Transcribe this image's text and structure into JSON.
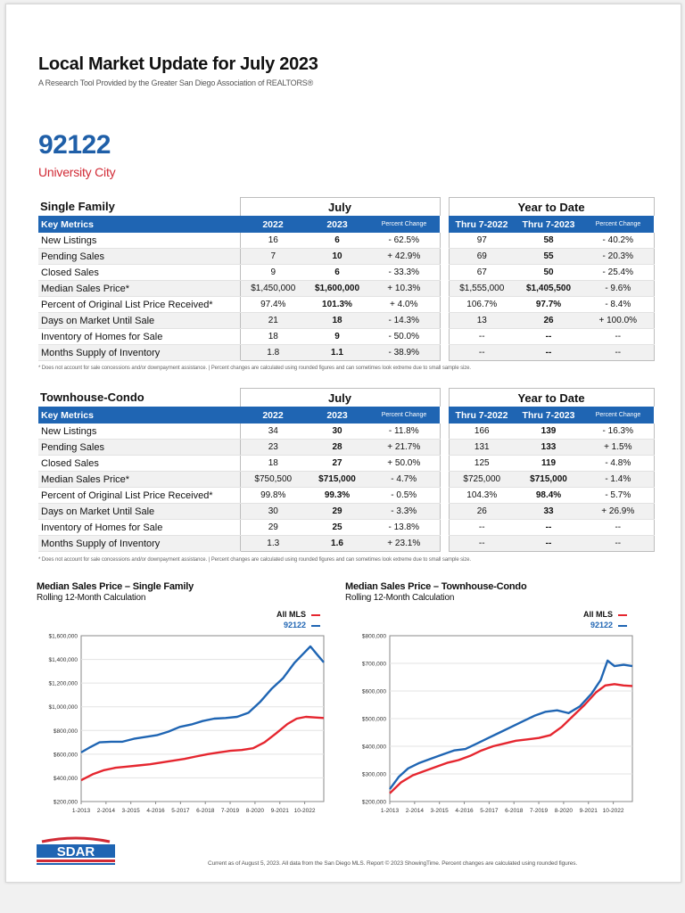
{
  "header": {
    "title": "Local Market Update for July 2023",
    "subtitle": "A Research Tool Provided by the Greater San Diego Association of REALTORS®",
    "zip": "92122",
    "area": "University City"
  },
  "columns": {
    "group_july": "July",
    "group_ytd": "Year to Date",
    "key_metrics": "Key Metrics",
    "y2022": "2022",
    "y2023": "2023",
    "pct": "Percent Change",
    "thru2022": "Thru 7-2022",
    "thru2023": "Thru 7-2023"
  },
  "single_family": {
    "title": "Single Family",
    "rows": [
      {
        "name": "New Listings",
        "v22": "16",
        "v23": "6",
        "pc": "- 62.5%",
        "t22": "97",
        "t23": "58",
        "tpc": "- 40.2%"
      },
      {
        "name": "Pending Sales",
        "v22": "7",
        "v23": "10",
        "pc": "+ 42.9%",
        "t22": "69",
        "t23": "55",
        "tpc": "- 20.3%"
      },
      {
        "name": "Closed Sales",
        "v22": "9",
        "v23": "6",
        "pc": "- 33.3%",
        "t22": "67",
        "t23": "50",
        "tpc": "- 25.4%"
      },
      {
        "name": "Median Sales Price*",
        "v22": "$1,450,000",
        "v23": "$1,600,000",
        "pc": "+ 10.3%",
        "t22": "$1,555,000",
        "t23": "$1,405,500",
        "tpc": "- 9.6%"
      },
      {
        "name": "Percent of Original List Price Received*",
        "v22": "97.4%",
        "v23": "101.3%",
        "pc": "+ 4.0%",
        "t22": "106.7%",
        "t23": "97.7%",
        "tpc": "- 8.4%"
      },
      {
        "name": "Days on Market Until Sale",
        "v22": "21",
        "v23": "18",
        "pc": "- 14.3%",
        "t22": "13",
        "t23": "26",
        "tpc": "+ 100.0%"
      },
      {
        "name": "Inventory of Homes for Sale",
        "v22": "18",
        "v23": "9",
        "pc": "- 50.0%",
        "t22": "--",
        "t23": "--",
        "tpc": "--"
      },
      {
        "name": "Months Supply of Inventory",
        "v22": "1.8",
        "v23": "1.1",
        "pc": "- 38.9%",
        "t22": "--",
        "t23": "--",
        "tpc": "--"
      }
    ],
    "footnote": "* Does not account for sale concessions and/or downpayment assistance.  |  Percent changes are calculated using rounded figures and can sometimes look extreme due to small sample size."
  },
  "townhouse": {
    "title": "Townhouse-Condo",
    "rows": [
      {
        "name": "New Listings",
        "v22": "34",
        "v23": "30",
        "pc": "- 11.8%",
        "t22": "166",
        "t23": "139",
        "tpc": "- 16.3%"
      },
      {
        "name": "Pending Sales",
        "v22": "23",
        "v23": "28",
        "pc": "+ 21.7%",
        "t22": "131",
        "t23": "133",
        "tpc": "+ 1.5%"
      },
      {
        "name": "Closed Sales",
        "v22": "18",
        "v23": "27",
        "pc": "+ 50.0%",
        "t22": "125",
        "t23": "119",
        "tpc": "- 4.8%"
      },
      {
        "name": "Median Sales Price*",
        "v22": "$750,500",
        "v23": "$715,000",
        "pc": "- 4.7%",
        "t22": "$725,000",
        "t23": "$715,000",
        "tpc": "- 1.4%"
      },
      {
        "name": "Percent of Original List Price Received*",
        "v22": "99.8%",
        "v23": "99.3%",
        "pc": "- 0.5%",
        "t22": "104.3%",
        "t23": "98.4%",
        "tpc": "- 5.7%"
      },
      {
        "name": "Days on Market Until Sale",
        "v22": "30",
        "v23": "29",
        "pc": "- 3.3%",
        "t22": "26",
        "t23": "33",
        "tpc": "+ 26.9%"
      },
      {
        "name": "Inventory of Homes for Sale",
        "v22": "29",
        "v23": "25",
        "pc": "- 13.8%",
        "t22": "--",
        "t23": "--",
        "tpc": "--"
      },
      {
        "name": "Months Supply of Inventory",
        "v22": "1.3",
        "v23": "1.6",
        "pc": "+ 23.1%",
        "t22": "--",
        "t23": "--",
        "tpc": "--"
      }
    ],
    "footnote": "* Does not account for sale concessions and/or downpayment assistance.  |  Percent changes are calculated using rounded figures and can sometimes look extreme due to small sample size."
  },
  "chart_data": [
    {
      "type": "line",
      "title": "Median Sales Price – Single Family",
      "subtitle": "Rolling 12-Month Calculation",
      "x_ticks": [
        "1-2013",
        "2-2014",
        "3-2015",
        "4-2016",
        "5-2017",
        "6-2018",
        "7-2019",
        "8-2020",
        "9-2021",
        "10-2022"
      ],
      "y_ticks": [
        "$200,000",
        "$400,000",
        "$600,000",
        "$800,000",
        "$1,000,000",
        "$1,200,000",
        "$1,400,000",
        "$1,600,000"
      ],
      "ylim": [
        200000,
        1600000
      ],
      "xlim": [
        2013.0,
        2023.583
      ],
      "legend_position": "top-right",
      "series": [
        {
          "name": "All MLS",
          "color": "#e5262f",
          "points": [
            [
              2013.0,
              380000
            ],
            [
              2013.5,
              430000
            ],
            [
              2014.0,
              465000
            ],
            [
              2014.5,
              485000
            ],
            [
              2015.0,
              495000
            ],
            [
              2015.5,
              505000
            ],
            [
              2016.0,
              515000
            ],
            [
              2016.5,
              530000
            ],
            [
              2017.0,
              545000
            ],
            [
              2017.5,
              560000
            ],
            [
              2018.0,
              580000
            ],
            [
              2018.5,
              600000
            ],
            [
              2019.0,
              615000
            ],
            [
              2019.5,
              628000
            ],
            [
              2020.0,
              635000
            ],
            [
              2020.5,
              650000
            ],
            [
              2021.0,
              700000
            ],
            [
              2021.5,
              775000
            ],
            [
              2022.0,
              855000
            ],
            [
              2022.4,
              900000
            ],
            [
              2022.8,
              915000
            ],
            [
              2023.2,
              910000
            ],
            [
              2023.583,
              905000
            ]
          ]
        },
        {
          "name": "92122",
          "color": "#1f65b3",
          "points": [
            [
              2013.0,
              615000
            ],
            [
              2013.4,
              660000
            ],
            [
              2013.8,
              700000
            ],
            [
              2014.3,
              705000
            ],
            [
              2014.8,
              705000
            ],
            [
              2015.3,
              730000
            ],
            [
              2015.8,
              745000
            ],
            [
              2016.3,
              760000
            ],
            [
              2016.8,
              790000
            ],
            [
              2017.3,
              830000
            ],
            [
              2017.8,
              850000
            ],
            [
              2018.3,
              880000
            ],
            [
              2018.8,
              900000
            ],
            [
              2019.3,
              905000
            ],
            [
              2019.8,
              915000
            ],
            [
              2020.3,
              950000
            ],
            [
              2020.8,
              1040000
            ],
            [
              2021.3,
              1150000
            ],
            [
              2021.8,
              1240000
            ],
            [
              2022.3,
              1370000
            ],
            [
              2022.7,
              1450000
            ],
            [
              2023.0,
              1510000
            ],
            [
              2023.3,
              1440000
            ],
            [
              2023.583,
              1375000
            ]
          ]
        }
      ]
    },
    {
      "type": "line",
      "title": "Median Sales Price – Townhouse-Condo",
      "subtitle": "Rolling 12-Month Calculation",
      "x_ticks": [
        "1-2013",
        "2-2014",
        "3-2015",
        "4-2016",
        "5-2017",
        "6-2018",
        "7-2019",
        "8-2020",
        "9-2021",
        "10-2022"
      ],
      "y_ticks": [
        "$200,000",
        "$300,000",
        "$400,000",
        "$500,000",
        "$600,000",
        "$700,000",
        "$800,000"
      ],
      "ylim": [
        200000,
        800000
      ],
      "xlim": [
        2013.0,
        2023.583
      ],
      "legend_position": "top-right",
      "series": [
        {
          "name": "All MLS",
          "color": "#e5262f",
          "points": [
            [
              2013.0,
              230000
            ],
            [
              2013.5,
              270000
            ],
            [
              2014.0,
              295000
            ],
            [
              2014.5,
              310000
            ],
            [
              2015.0,
              325000
            ],
            [
              2015.5,
              340000
            ],
            [
              2016.0,
              350000
            ],
            [
              2016.5,
              365000
            ],
            [
              2017.0,
              385000
            ],
            [
              2017.5,
              400000
            ],
            [
              2018.0,
              410000
            ],
            [
              2018.5,
              420000
            ],
            [
              2019.0,
              425000
            ],
            [
              2019.5,
              430000
            ],
            [
              2020.0,
              440000
            ],
            [
              2020.5,
              470000
            ],
            [
              2021.0,
              510000
            ],
            [
              2021.5,
              550000
            ],
            [
              2022.0,
              595000
            ],
            [
              2022.4,
              620000
            ],
            [
              2022.8,
              625000
            ],
            [
              2023.2,
              620000
            ],
            [
              2023.583,
              618000
            ]
          ]
        },
        {
          "name": "92122",
          "color": "#1f65b3",
          "points": [
            [
              2013.0,
              245000
            ],
            [
              2013.4,
              290000
            ],
            [
              2013.8,
              320000
            ],
            [
              2014.3,
              340000
            ],
            [
              2014.8,
              355000
            ],
            [
              2015.3,
              370000
            ],
            [
              2015.8,
              385000
            ],
            [
              2016.3,
              390000
            ],
            [
              2016.8,
              410000
            ],
            [
              2017.3,
              430000
            ],
            [
              2017.8,
              450000
            ],
            [
              2018.3,
              470000
            ],
            [
              2018.8,
              490000
            ],
            [
              2019.3,
              510000
            ],
            [
              2019.8,
              525000
            ],
            [
              2020.3,
              530000
            ],
            [
              2020.8,
              520000
            ],
            [
              2021.3,
              545000
            ],
            [
              2021.8,
              590000
            ],
            [
              2022.2,
              640000
            ],
            [
              2022.5,
              710000
            ],
            [
              2022.8,
              690000
            ],
            [
              2023.2,
              695000
            ],
            [
              2023.583,
              690000
            ]
          ]
        }
      ]
    }
  ],
  "footer": {
    "note": "Current as of August 5, 2023. All data from the San Diego MLS. Report © 2023 ShowingTime. Percent changes are calculated using rounded figures.",
    "logo_text": "SDAR",
    "logo_tagline": "Greater San Diego Association of REALTORS® · The Trusted Voice of San Diego Real Estate"
  }
}
